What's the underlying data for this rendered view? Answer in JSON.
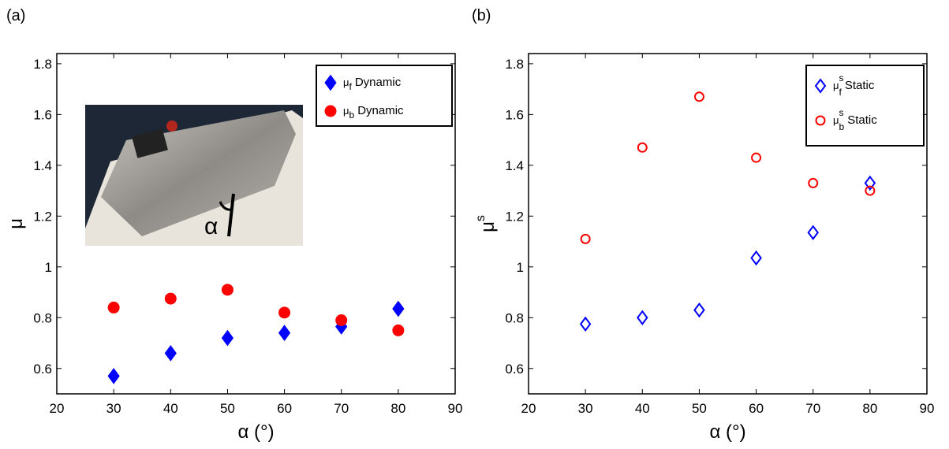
{
  "chart_data": [
    {
      "type": "scatter",
      "panel_label": "(a)",
      "x_label": "α (°)",
      "y_label": {
        "symbol": "μ"
      },
      "xlim": [
        20,
        90
      ],
      "xticks": [
        20,
        30,
        40,
        50,
        60,
        70,
        80,
        90
      ],
      "ylim": [
        0.5,
        1.84
      ],
      "yticks": [
        0.6,
        0.8,
        1,
        1.2,
        1.4,
        1.6,
        1.8
      ],
      "legend_position": "upper right",
      "inset": {
        "label": "α"
      },
      "x": [
        30,
        40,
        50,
        60,
        70,
        80
      ],
      "series": [
        {
          "symbol": "μ",
          "sub": "f",
          "name": "Dynamic",
          "color": "#0000ff",
          "marker": "diamond",
          "filled": true,
          "values": [
            0.57,
            0.66,
            0.72,
            0.74,
            0.765,
            0.835
          ]
        },
        {
          "symbol": "μ",
          "sub": "b",
          "name": "Dynamic",
          "color": "#ff0000",
          "marker": "circle",
          "filled": true,
          "values": [
            0.84,
            0.875,
            0.91,
            0.82,
            0.79,
            0.75
          ]
        }
      ]
    },
    {
      "type": "scatter",
      "panel_label": "(b)",
      "x_label": "α (°)",
      "y_label": {
        "symbol": "μ",
        "sup": "s"
      },
      "xlim": [
        20,
        90
      ],
      "xticks": [
        20,
        30,
        40,
        50,
        60,
        70,
        80,
        90
      ],
      "ylim": [
        0.5,
        1.84
      ],
      "yticks": [
        0.6,
        0.8,
        1,
        1.2,
        1.4,
        1.6,
        1.8
      ],
      "legend_position": "upper right",
      "x": [
        30,
        40,
        50,
        60,
        70,
        80
      ],
      "series": [
        {
          "symbol": "μ",
          "sub": "f",
          "sup": "s",
          "name": "Static",
          "color": "#0000ff",
          "marker": "diamond",
          "filled": false,
          "values": [
            0.775,
            0.8,
            0.83,
            1.035,
            1.135,
            1.33
          ]
        },
        {
          "symbol": "μ",
          "sub": "b",
          "sup": "s",
          "name": "Static",
          "color": "#ff0000",
          "marker": "circle",
          "filled": false,
          "values": [
            1.11,
            1.47,
            1.67,
            1.43,
            1.33,
            1.3
          ]
        }
      ]
    }
  ]
}
